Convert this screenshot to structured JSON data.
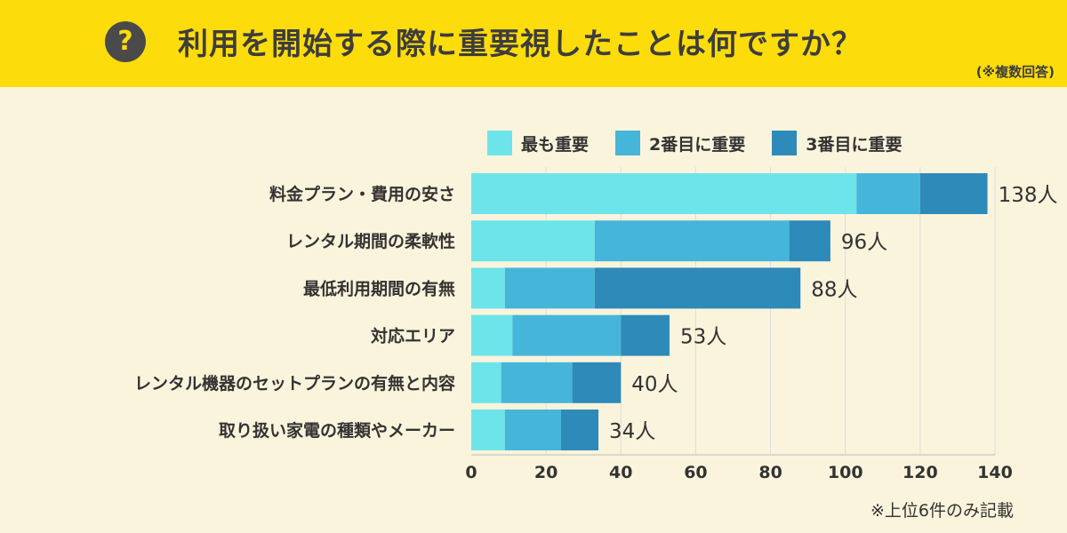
{
  "header": {
    "icon": "question-icon",
    "icon_glyph": "?",
    "title": "利用を開始する際に重要視したことは何ですか？",
    "note": "(※複数回答)"
  },
  "colors": {
    "banner": "#fddc0c",
    "background": "#fbf4dc",
    "series": [
      "#6ce4ea",
      "#45b6d9",
      "#2e8ab9"
    ],
    "grid": "#dcdcdc"
  },
  "footnote": "※上位6件のみ記載",
  "chart_data": {
    "type": "bar",
    "orientation": "horizontal",
    "stacked": true,
    "title": "利用を開始する際に重要視したことは何ですか？",
    "categories": [
      "料金プラン・費用の安さ",
      "レンタル期間の柔軟性",
      "最低利用期間の有無",
      "対応エリア",
      "レンタル機器のセットプランの有無と内容",
      "取り扱い家電の種類やメーカー"
    ],
    "series": [
      {
        "name": "最も重要",
        "values": [
          103,
          33,
          9,
          11,
          8,
          9
        ]
      },
      {
        "name": "2番目に重要",
        "values": [
          17,
          52,
          24,
          29,
          19,
          15
        ]
      },
      {
        "name": "3番目に重要",
        "values": [
          18,
          11,
          55,
          13,
          13,
          10
        ]
      }
    ],
    "totals": [
      138,
      96,
      88,
      53,
      40,
      34
    ],
    "total_labels": [
      "138人",
      "96人",
      "88人",
      "53人",
      "40人",
      "34人"
    ],
    "xlim": [
      0,
      140
    ],
    "xticks": [
      0,
      20,
      40,
      60,
      80,
      100,
      120,
      140
    ],
    "xlabel": "",
    "ylabel": "",
    "grid": true,
    "legend_position": "top"
  }
}
